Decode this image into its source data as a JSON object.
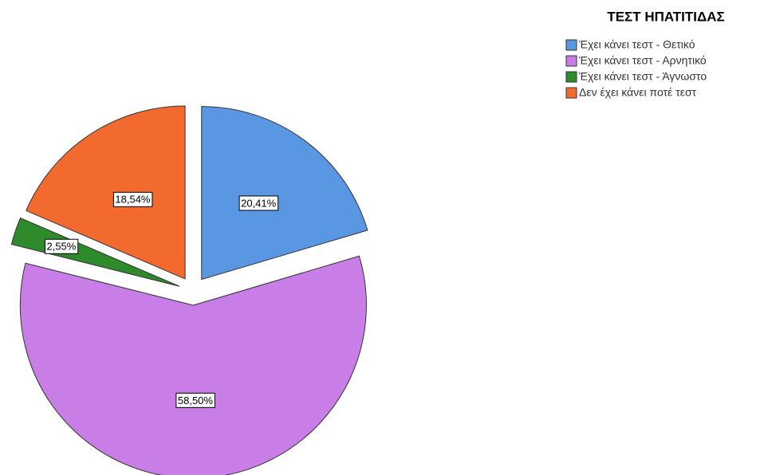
{
  "chart_data": {
    "type": "pie",
    "legend_title": "ΤΕΣΤ ΗΠΑΤΙΤΙΔΑΣ",
    "categories": [
      "Έχει κάνει τεστ - Θετικό",
      "Έχει κάνει τεστ - Αρνητικό",
      "Έχει κάνει τεστ - Άγνωστο",
      "Δεν έχει κάνει ποτέ τεστ"
    ],
    "values": [
      20.41,
      58.5,
      2.55,
      18.54
    ],
    "value_labels": [
      "20,41%",
      "58,50%",
      "2,55%",
      "18,54%"
    ],
    "colors": [
      "#5a97e2",
      "#c97de6",
      "#2e8a2a",
      "#f26a2e"
    ],
    "legend": "top-right"
  }
}
